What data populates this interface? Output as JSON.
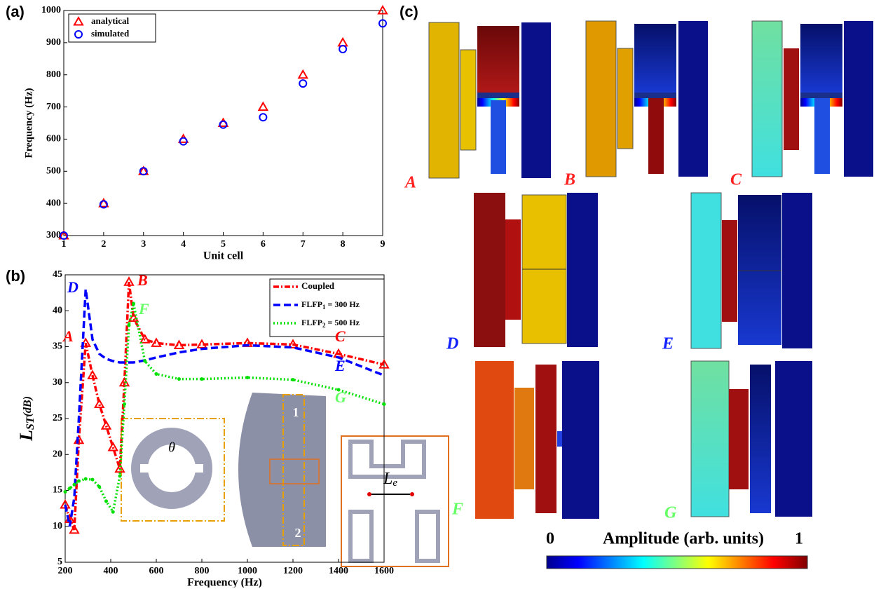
{
  "panel_labels": [
    "(a)",
    "(b)",
    "(c)"
  ],
  "chart_data": [
    {
      "type": "scatter",
      "xlabel": "Unit cell",
      "ylabel": "Frequency (Hz)",
      "xlim": [
        1,
        9
      ],
      "xticks": [
        1,
        2,
        3,
        4,
        5,
        6,
        7,
        8,
        9
      ],
      "ylim": [
        300,
        1000
      ],
      "yticks": [
        300,
        400,
        500,
        600,
        700,
        800,
        900,
        1000
      ],
      "legend": "upper left",
      "series": [
        {
          "name": "analytical",
          "color": "#ff0000",
          "marker": "triangle",
          "x": [
            1,
            2,
            3,
            4,
            5,
            6,
            7,
            8,
            9
          ],
          "values": [
            300,
            400,
            500,
            600,
            650,
            700,
            800,
            900,
            1000
          ]
        },
        {
          "name": "simulated",
          "color": "#0000ff",
          "marker": "circle",
          "x": [
            1,
            2,
            3,
            4,
            5,
            6,
            7,
            8,
            9
          ],
          "values": [
            300,
            397,
            500,
            593,
            645,
            668,
            773,
            880,
            960
          ]
        }
      ]
    },
    {
      "type": "line",
      "xlabel": "Frequency (Hz)",
      "ylabel": {
        "main": "L",
        "sub": "ST",
        "unit": "(dB)"
      },
      "xlim": [
        200,
        1600
      ],
      "xticks": [
        200,
        400,
        600,
        800,
        1000,
        1200,
        1400,
        1600
      ],
      "ylim": [
        5,
        45
      ],
      "yticks": [
        5,
        10,
        15,
        20,
        25,
        30,
        35,
        40,
        45
      ],
      "legend": "upper right",
      "x": [
        200,
        220,
        240,
        260,
        290,
        320,
        350,
        380,
        410,
        440,
        460,
        480,
        500,
        550,
        600,
        700,
        800,
        1000,
        1200,
        1400,
        1600
      ],
      "series": [
        {
          "name": "Coupled",
          "color": "#ff0000",
          "marker": "triangle",
          "values": [
            13,
            11,
            9.5,
            22,
            35.5,
            31,
            27,
            24,
            21,
            18,
            30,
            44,
            39,
            36,
            35.5,
            35.2,
            35.3,
            35.5,
            35.3,
            34,
            32.5
          ]
        },
        {
          "name": {
            "main": "FLFP",
            "sub": "1",
            "rest": " = 300 Hz"
          },
          "color": "#0000ff",
          "marker": "dash",
          "values": [
            13,
            10,
            14,
            25,
            43,
            36,
            34,
            33.3,
            33,
            32.8,
            32.8,
            32.8,
            32.8,
            33.1,
            33.5,
            34.2,
            34.7,
            35.2,
            34.9,
            33.5,
            31
          ]
        },
        {
          "name": {
            "main": "FLFP",
            "sub": "2",
            "rest": " = 500 Hz"
          },
          "color": "#00e000",
          "marker": "dot",
          "values": [
            14.8,
            15.3,
            15.8,
            16.3,
            16.6,
            16.5,
            15.5,
            13.5,
            12,
            17,
            27,
            38,
            41,
            33,
            31.2,
            30.5,
            30.5,
            30.7,
            30.4,
            29,
            27
          ]
        }
      ],
      "annotations": [
        {
          "text": "A",
          "color": "#ff0000"
        },
        {
          "text": "B",
          "color": "#ff0000"
        },
        {
          "text": "C",
          "color": "#ff0000"
        },
        {
          "text": "D",
          "color": "#0000ff"
        },
        {
          "text": "E",
          "color": "#0000ff"
        },
        {
          "text": "F",
          "color": "#66ff66"
        },
        {
          "text": "G",
          "color": "#66ff66"
        }
      ],
      "inset_labels": {
        "theta": "θ",
        "le": "L",
        "le_sub": "e",
        "one": "1",
        "two": "2"
      }
    }
  ],
  "mode_shapes": {
    "labels": [
      "A",
      "B",
      "C",
      "D",
      "E",
      "F",
      "G"
    ],
    "colorbar": {
      "min_label": "0",
      "title": "Amplitude (arb. units)",
      "max_label": "1"
    }
  }
}
